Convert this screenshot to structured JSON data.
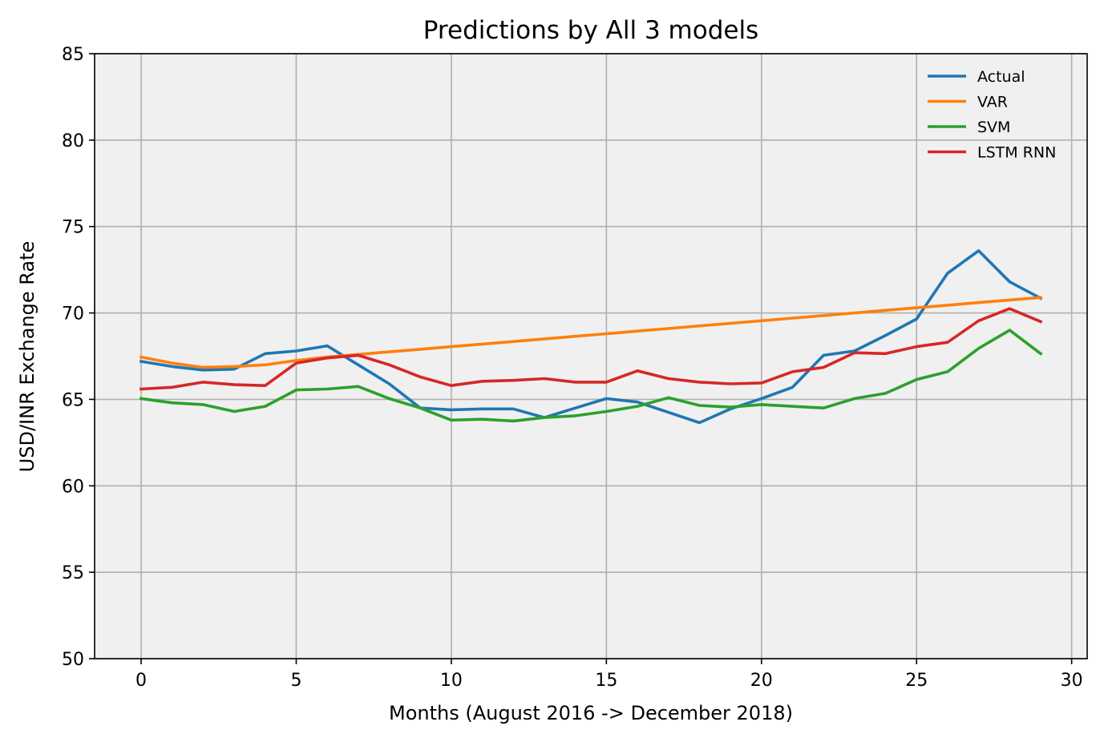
{
  "chart_data": {
    "type": "line",
    "title": "Predictions by All 3 models",
    "xlabel": "Months (August 2016 -> December 2018)",
    "ylabel": "USD/INR Exchange Rate",
    "xlim": [
      -1.5,
      30.5
    ],
    "ylim": [
      50,
      85
    ],
    "xticks": [
      0,
      5,
      10,
      15,
      20,
      25,
      30
    ],
    "yticks": [
      50,
      55,
      60,
      65,
      70,
      75,
      80,
      85
    ],
    "grid": true,
    "legend_position": "top-right",
    "x": [
      0,
      1,
      2,
      3,
      4,
      5,
      6,
      7,
      8,
      9,
      10,
      11,
      12,
      13,
      14,
      15,
      16,
      17,
      18,
      19,
      20,
      21,
      22,
      23,
      24,
      25,
      26,
      27,
      28,
      29
    ],
    "series": [
      {
        "name": "Actual",
        "color": "#1f77b4",
        "values": [
          67.2,
          66.9,
          66.7,
          66.75,
          67.65,
          67.8,
          68.1,
          67.0,
          65.9,
          64.5,
          64.4,
          64.45,
          64.45,
          63.95,
          64.5,
          65.05,
          64.85,
          64.25,
          63.65,
          64.45,
          65.05,
          65.7,
          67.55,
          67.8,
          68.7,
          69.65,
          72.3,
          73.6,
          71.8,
          70.85
        ]
      },
      {
        "name": "VAR",
        "color": "#ff7f0e",
        "values": [
          67.45,
          67.1,
          66.85,
          66.9,
          67.0,
          67.25,
          67.45,
          67.6,
          67.75,
          67.9,
          68.05,
          68.2,
          68.35,
          68.5,
          68.65,
          68.8,
          68.95,
          69.1,
          69.25,
          69.4,
          69.55,
          69.7,
          69.85,
          70.0,
          70.15,
          70.3,
          70.45,
          70.6,
          70.75,
          70.9
        ]
      },
      {
        "name": "SVM",
        "color": "#2ca02c",
        "values": [
          65.05,
          64.8,
          64.7,
          64.3,
          64.6,
          65.55,
          65.6,
          65.75,
          65.05,
          64.5,
          63.8,
          63.85,
          63.75,
          63.95,
          64.05,
          64.3,
          64.6,
          65.1,
          64.65,
          64.55,
          64.7,
          64.6,
          64.5,
          65.05,
          65.35,
          66.15,
          66.6,
          67.95,
          69.0,
          67.65
        ]
      },
      {
        "name": "LSTM RNN",
        "color": "#d62728",
        "values": [
          65.6,
          65.7,
          66.0,
          65.85,
          65.8,
          67.1,
          67.4,
          67.55,
          67.0,
          66.3,
          65.8,
          66.05,
          66.1,
          66.2,
          66.0,
          66.0,
          66.65,
          66.2,
          66.0,
          65.9,
          65.95,
          66.6,
          66.85,
          67.7,
          67.65,
          68.05,
          68.3,
          69.55,
          70.25,
          69.5
        ]
      }
    ]
  }
}
